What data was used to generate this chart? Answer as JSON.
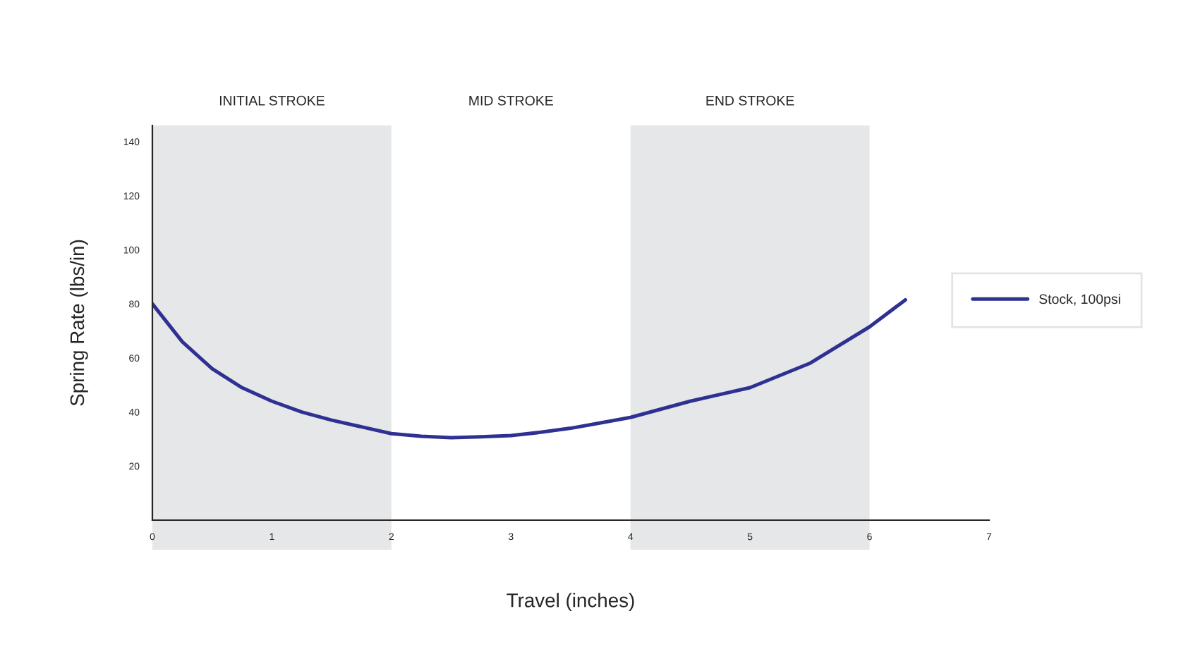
{
  "chart_data": {
    "type": "line",
    "xlabel": "Travel (inches)",
    "ylabel": "Spring Rate (lbs/in)",
    "x": [
      0,
      0.25,
      0.5,
      0.75,
      1,
      1.25,
      1.5,
      1.75,
      2,
      2.25,
      2.5,
      2.75,
      3,
      3.25,
      3.5,
      3.75,
      4,
      4.5,
      5,
      5.5,
      6,
      6.3
    ],
    "series": [
      {
        "name": "Stock, 100psi",
        "color": "#2e3192",
        "values": [
          80,
          66,
          56,
          49,
          44,
          40,
          37,
          34.5,
          32,
          31,
          30.5,
          30.8,
          31.3,
          32.5,
          34,
          36,
          38,
          44,
          49,
          58,
          71.5,
          81.5
        ]
      }
    ],
    "xlim": [
      0,
      7
    ],
    "ylim": [
      0,
      146
    ],
    "xticks": [
      0,
      1,
      2,
      3,
      4,
      5,
      6,
      7
    ],
    "yticks": [
      20,
      40,
      60,
      80,
      100,
      120,
      140
    ],
    "bands": [
      {
        "axis": "x",
        "from": 0,
        "to": 2,
        "label": "INITIAL STROKE",
        "color": "#e6e7e8"
      },
      {
        "axis": "x",
        "from": 4,
        "to": 6,
        "label": "END STROKE",
        "color": "#e6e7e8"
      }
    ],
    "annotations": [
      "MID STROKE"
    ],
    "grid": false,
    "legend": "right",
    "marker": "none",
    "line_style": "solid"
  }
}
